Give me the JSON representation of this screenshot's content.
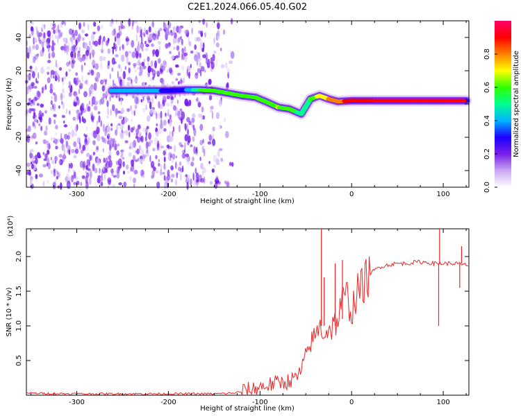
{
  "figure_title": "C2E1.2024.066.05.40.G02",
  "chart_data": [
    {
      "type": "heatmap",
      "title": "C2E1.2024.066.05.40.G02",
      "xlabel": "Height of straight line (km)",
      "ylabel": "Frequency (Hz)",
      "xlim": [
        -355,
        128
      ],
      "ylim": [
        -50,
        50
      ],
      "x_ticks": [
        -300,
        -200,
        -100,
        0,
        100
      ],
      "y_ticks": [
        -40,
        -20,
        0,
        20,
        40
      ],
      "x_tick_labels": [
        "-300",
        "-200",
        "-100",
        "0",
        "100"
      ],
      "y_tick_labels": [
        "-40",
        "-20",
        "0",
        "20",
        "40"
      ],
      "colorbar": {
        "label": "Normalized spectral amplitude",
        "range": [
          0,
          1
        ],
        "ticks": [
          0.0,
          0.2,
          0.4,
          0.6,
          0.8
        ],
        "tick_labels": [
          "0.0",
          "0.2",
          "0.4",
          "0.6",
          "0.8"
        ],
        "colors": [
          "#ffffff",
          "#c8a8f4",
          "#7a1fe8",
          "#1a00ff",
          "#00b4ff",
          "#00ff90",
          "#30ff00",
          "#ffff00",
          "#ff8000",
          "#ff0000",
          "#ff0066"
        ]
      },
      "noise_region_x": [
        -355,
        -130
      ],
      "signal_ridge": [
        {
          "x": -262,
          "freq": 8,
          "amp": 0.35
        },
        {
          "x": -240,
          "freq": 8,
          "amp": 0.35
        },
        {
          "x": -220,
          "freq": 8,
          "amp": 0.4
        },
        {
          "x": -200,
          "freq": 8,
          "amp": 0.3
        },
        {
          "x": -180,
          "freq": 8.5,
          "amp": 0.35
        },
        {
          "x": -165,
          "freq": 8.5,
          "amp": 0.55
        },
        {
          "x": -150,
          "freq": 8,
          "amp": 0.55
        },
        {
          "x": -135,
          "freq": 6.5,
          "amp": 0.55
        },
        {
          "x": -120,
          "freq": 5,
          "amp": 0.6
        },
        {
          "x": -105,
          "freq": 4,
          "amp": 0.6
        },
        {
          "x": -92,
          "freq": 1,
          "amp": 0.6
        },
        {
          "x": -80,
          "freq": -2,
          "amp": 0.65
        },
        {
          "x": -68,
          "freq": -3,
          "amp": 0.6
        },
        {
          "x": -55,
          "freq": -6,
          "amp": 0.5
        },
        {
          "x": -45,
          "freq": 3,
          "amp": 0.55
        },
        {
          "x": -35,
          "freq": 5,
          "amp": 0.7
        },
        {
          "x": -25,
          "freq": 3,
          "amp": 0.75
        },
        {
          "x": -15,
          "freq": 1.5,
          "amp": 0.8
        },
        {
          "x": 0,
          "freq": 2,
          "amp": 0.9
        },
        {
          "x": 25,
          "freq": 2,
          "amp": 0.95
        },
        {
          "x": 50,
          "freq": 2,
          "amp": 0.95
        },
        {
          "x": 75,
          "freq": 2,
          "amp": 0.95
        },
        {
          "x": 100,
          "freq": 2,
          "amp": 0.95
        },
        {
          "x": 125,
          "freq": 2,
          "amp": 0.95
        }
      ]
    },
    {
      "type": "line",
      "xlabel": "Height of straight line (km)",
      "ylabel": "SNR (10 * v/v)",
      "y_multiplier": "(x10⁴)",
      "xlim": [
        -355,
        128
      ],
      "ylim": [
        0,
        2.4
      ],
      "x_ticks": [
        -300,
        -200,
        -100,
        0,
        100
      ],
      "y_ticks": [
        0.5,
        1.0,
        1.5,
        2.0
      ],
      "x_tick_labels": [
        "-300",
        "-200",
        "-100",
        "0",
        "100"
      ],
      "y_tick_labels": [
        "0.5",
        "1.0",
        "1.5",
        "2.0"
      ],
      "color": "#ee2222",
      "x": [
        -355,
        -300,
        -250,
        -200,
        -150,
        -130,
        -120,
        -110,
        -100,
        -90,
        -80,
        -70,
        -60,
        -55,
        -50,
        -45,
        -40,
        -35,
        -30,
        -25,
        -20,
        -15,
        -10,
        -5,
        0,
        5,
        10,
        15,
        20,
        25,
        30,
        40,
        50,
        60,
        70,
        80,
        90,
        95,
        100,
        110,
        115,
        120,
        128
      ],
      "y": [
        0.03,
        0.02,
        0.02,
        0.02,
        0.02,
        0.03,
        0.05,
        0.08,
        0.12,
        0.15,
        0.18,
        0.2,
        0.25,
        0.35,
        0.55,
        0.75,
        0.85,
        1.0,
        0.9,
        0.95,
        1.0,
        1.1,
        1.35,
        1.45,
        1.2,
        1.45,
        1.55,
        1.65,
        1.75,
        1.8,
        1.85,
        1.88,
        1.9,
        1.9,
        1.92,
        1.92,
        1.9,
        1.9,
        1.9,
        1.9,
        1.9,
        1.88,
        1.88
      ],
      "spikes": [
        {
          "x": -33,
          "y": 2.4
        },
        {
          "x": -30,
          "y": 1.7
        },
        {
          "x": -18,
          "y": 1.9
        },
        {
          "x": -10,
          "y": 1.95
        },
        {
          "x": 95,
          "y": 1.0
        },
        {
          "x": 96,
          "y": 2.4
        },
        {
          "x": 118,
          "y": 1.55
        },
        {
          "x": 120,
          "y": 2.15
        }
      ]
    }
  ]
}
